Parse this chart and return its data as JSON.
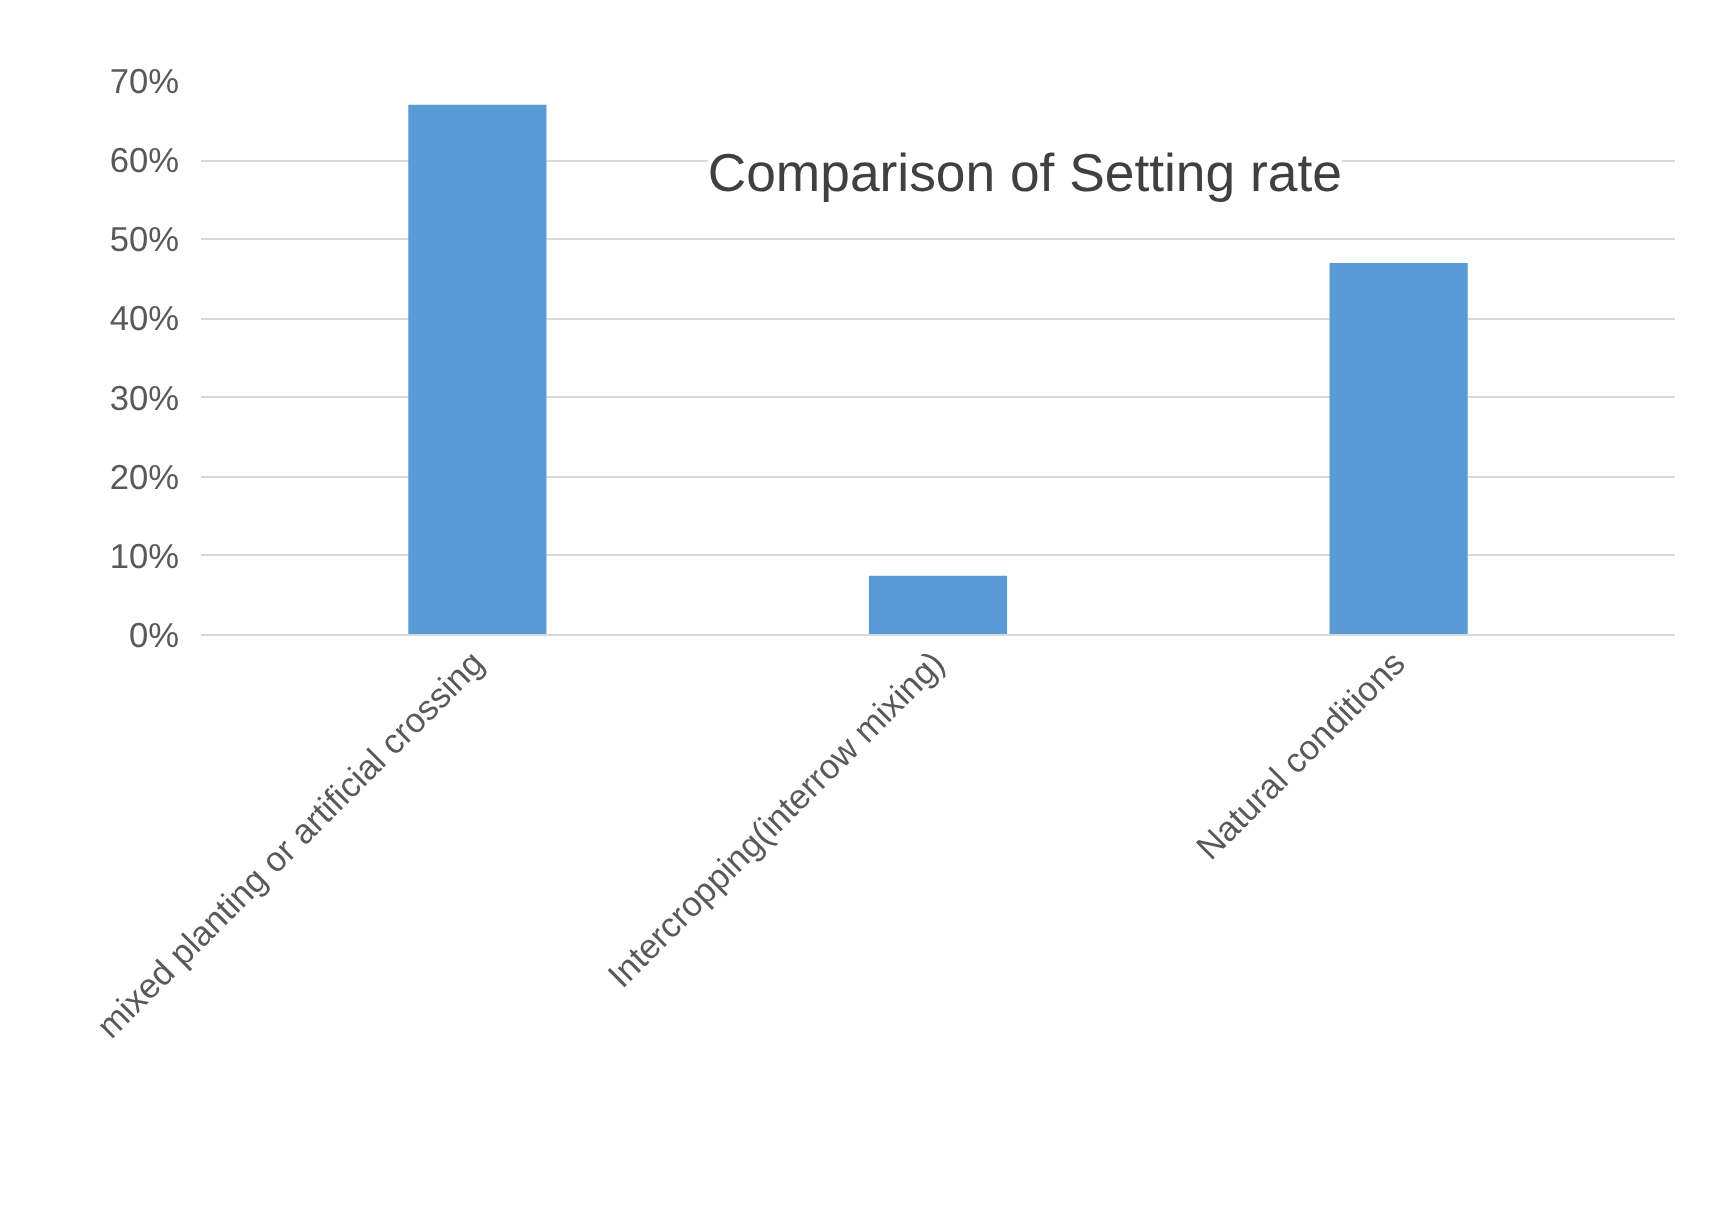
{
  "chart_data": {
    "type": "bar",
    "title": "Comparison of Setting rate",
    "categories": [
      "mixed planting or artificial crossing",
      "Intercropping(interrow mixing)",
      "Natural conditions"
    ],
    "values": [
      67,
      7.5,
      47
    ],
    "color": "#5b9bd5",
    "ylim": [
      0,
      70
    ],
    "yticks": [
      {
        "value": 0,
        "label": "0%"
      },
      {
        "value": 10,
        "label": "10%"
      },
      {
        "value": 20,
        "label": "20%"
      },
      {
        "value": 30,
        "label": "30%"
      },
      {
        "value": 40,
        "label": "40%"
      },
      {
        "value": 50,
        "label": "50%"
      },
      {
        "value": 60,
        "label": "60%"
      },
      {
        "value": 70,
        "label": "70%"
      }
    ],
    "grid": "y"
  }
}
